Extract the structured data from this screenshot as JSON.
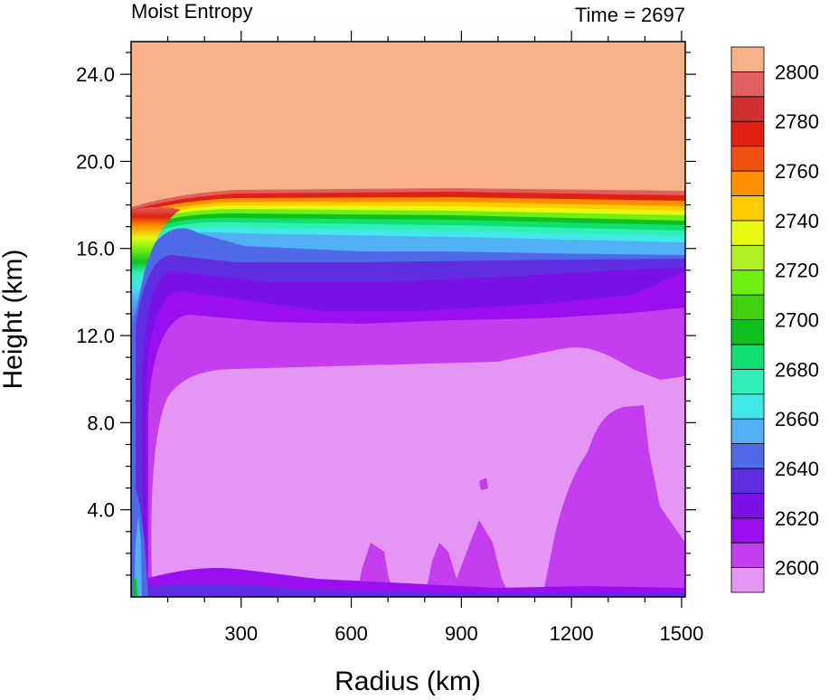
{
  "chart_data": {
    "type": "heatmap",
    "title_left": "Moist Entropy",
    "title_right": "Time = 2697",
    "xlabel": "Radius (km)",
    "ylabel": "Height (km)",
    "xlim": [
      0,
      1510
    ],
    "ylim": [
      0,
      25.5
    ],
    "x_ticks": [
      300,
      600,
      900,
      1200,
      1500
    ],
    "x_tick_labels": [
      "300",
      "600",
      "900",
      "1200",
      "1500"
    ],
    "y_ticks": [
      4,
      8,
      12,
      16,
      20,
      24
    ],
    "y_tick_labels": [
      "4.0",
      "8.0",
      "12.0",
      "16.0",
      "20.0",
      "24.0"
    ],
    "colorbar": {
      "levels": [
        2600,
        2610,
        2620,
        2630,
        2640,
        2650,
        2660,
        2670,
        2680,
        2690,
        2700,
        2710,
        2720,
        2730,
        2740,
        2750,
        2760,
        2770,
        2780,
        2790,
        2800
      ],
      "labels": [
        "2600",
        "2620",
        "2640",
        "2660",
        "2680",
        "2700",
        "2720",
        "2740",
        "2760",
        "2780",
        "2800"
      ],
      "colors": [
        "#e596f5",
        "#c43ef0",
        "#9b0ef0",
        "#7a12e8",
        "#5e2ee0",
        "#4e6ae8",
        "#52b0f5",
        "#40e8e8",
        "#30f0b8",
        "#10e070",
        "#10c020",
        "#40d010",
        "#70f010",
        "#b0f020",
        "#e8f810",
        "#ffcc00",
        "#ff9000",
        "#f05010",
        "#e02010",
        "#d03030",
        "#e06060",
        "#f8b088"
      ]
    }
  }
}
